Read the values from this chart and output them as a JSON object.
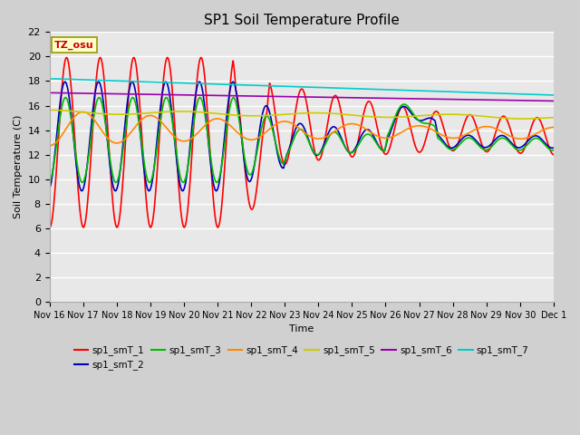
{
  "title": "SP1 Soil Temperature Profile",
  "xlabel": "Time",
  "ylabel": "Soil Temperature (C)",
  "ylim": [
    0,
    22
  ],
  "yticks": [
    0,
    2,
    4,
    6,
    8,
    10,
    12,
    14,
    16,
    18,
    20,
    22
  ],
  "tz_label": "TZ_osu",
  "fig_bg_color": "#d0d0d0",
  "plot_bg_color": "#e8e8e8",
  "series_colors": {
    "sp1_smT_1": "#ff0000",
    "sp1_smT_2": "#0000bb",
    "sp1_smT_3": "#00bb00",
    "sp1_smT_4": "#ff8800",
    "sp1_smT_5": "#cccc00",
    "sp1_smT_6": "#9900aa",
    "sp1_smT_7": "#00cccc"
  },
  "xtick_labels": [
    "Nov 16",
    "Nov 17",
    "Nov 18",
    "Nov 19",
    "Nov 20",
    "Nov 21",
    "Nov 22",
    "Nov 23",
    "Nov 24",
    "Nov 25",
    "Nov 26",
    "Nov 27",
    "Nov 28",
    "Nov 29",
    "Nov 30",
    "Dec 1"
  ],
  "n_days": 15,
  "pts_per_day": 48
}
